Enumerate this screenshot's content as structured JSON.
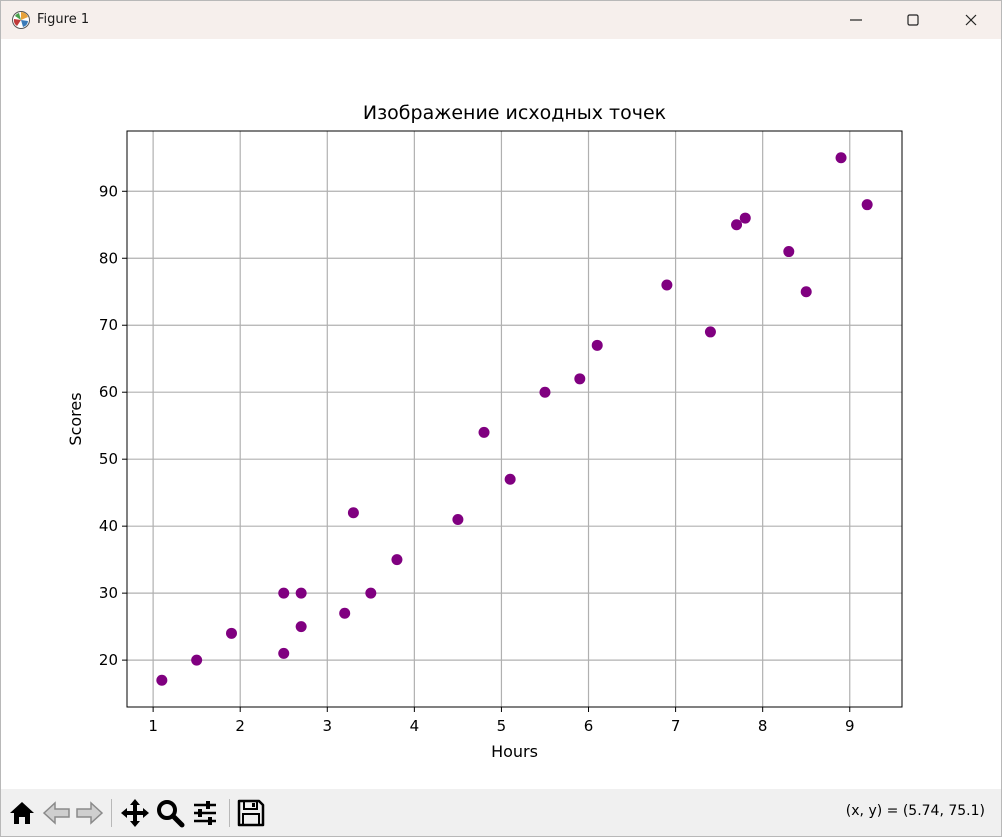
{
  "window": {
    "title": "Figure 1"
  },
  "toolbar": {
    "buttons": [
      "home-icon",
      "back-icon",
      "forward-icon",
      "pan-icon",
      "zoom-icon",
      "configure-subplots-icon",
      "save-icon"
    ],
    "coords_text": "(x, y) = (5.74, 75.1)"
  },
  "chart_data": {
    "type": "scatter",
    "title": "Изображение исходных точек",
    "xlabel": "Hours",
    "ylabel": "Scores",
    "xlim": [
      0.7,
      9.6
    ],
    "ylim": [
      13.0,
      99.0
    ],
    "xticks": [
      1,
      2,
      3,
      4,
      5,
      6,
      7,
      8,
      9
    ],
    "yticks": [
      20,
      30,
      40,
      50,
      60,
      70,
      80,
      90
    ],
    "grid": true,
    "marker_color": "#800080",
    "points": [
      {
        "x": 1.1,
        "y": 17
      },
      {
        "x": 1.5,
        "y": 20
      },
      {
        "x": 1.9,
        "y": 24
      },
      {
        "x": 2.5,
        "y": 21
      },
      {
        "x": 2.5,
        "y": 30
      },
      {
        "x": 2.7,
        "y": 25
      },
      {
        "x": 2.7,
        "y": 30
      },
      {
        "x": 3.2,
        "y": 27
      },
      {
        "x": 3.3,
        "y": 42
      },
      {
        "x": 3.5,
        "y": 30
      },
      {
        "x": 3.8,
        "y": 35
      },
      {
        "x": 4.5,
        "y": 41
      },
      {
        "x": 4.8,
        "y": 54
      },
      {
        "x": 5.1,
        "y": 47
      },
      {
        "x": 5.5,
        "y": 60
      },
      {
        "x": 5.9,
        "y": 62
      },
      {
        "x": 6.1,
        "y": 67
      },
      {
        "x": 6.9,
        "y": 76
      },
      {
        "x": 7.4,
        "y": 69
      },
      {
        "x": 7.7,
        "y": 85
      },
      {
        "x": 7.8,
        "y": 86
      },
      {
        "x": 8.3,
        "y": 81
      },
      {
        "x": 8.5,
        "y": 75
      },
      {
        "x": 8.9,
        "y": 95
      },
      {
        "x": 9.2,
        "y": 88
      }
    ]
  }
}
